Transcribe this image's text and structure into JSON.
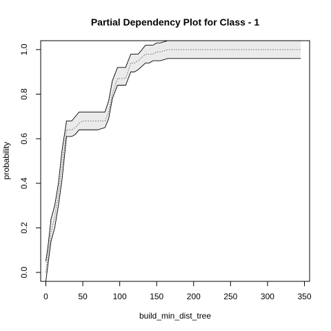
{
  "chart_data": {
    "type": "line",
    "title": "Partial Dependency Plot for Class - 1",
    "xlabel": "build_min_dist_tree",
    "ylabel": "probability",
    "xlim": [
      -7,
      357
    ],
    "ylim": [
      -0.04,
      1.04
    ],
    "x_ticks": [
      0,
      50,
      100,
      150,
      200,
      250,
      300,
      350
    ],
    "y_ticks": [
      0.0,
      0.2,
      0.4,
      0.6,
      0.8,
      1.0
    ],
    "grid": false,
    "band_fill_color": "#ebebeb",
    "line_color": "#000000",
    "series": [
      {
        "name": "upper",
        "x": [
          0,
          3,
          7,
          12,
          17,
          22,
          28,
          35,
          40,
          45,
          50,
          70,
          80,
          85,
          90,
          97,
          108,
          115,
          120,
          125,
          135,
          140,
          145,
          150,
          155,
          165,
          170,
          345
        ],
        "y": [
          0.05,
          0.12,
          0.24,
          0.3,
          0.4,
          0.55,
          0.68,
          0.68,
          0.7,
          0.72,
          0.72,
          0.72,
          0.72,
          0.77,
          0.86,
          0.92,
          0.92,
          0.98,
          0.98,
          0.98,
          1.02,
          1.02,
          1.02,
          1.03,
          1.03,
          1.04,
          1.04,
          1.04
        ]
      },
      {
        "name": "mean",
        "x": [
          0,
          3,
          7,
          12,
          17,
          22,
          28,
          35,
          40,
          45,
          50,
          70,
          80,
          85,
          90,
          97,
          108,
          115,
          120,
          125,
          135,
          140,
          145,
          150,
          155,
          165,
          170,
          345
        ],
        "y": [
          0.0,
          0.08,
          0.18,
          0.25,
          0.35,
          0.48,
          0.64,
          0.64,
          0.65,
          0.67,
          0.68,
          0.68,
          0.68,
          0.72,
          0.8,
          0.87,
          0.87,
          0.94,
          0.94,
          0.95,
          0.98,
          0.98,
          0.98,
          0.99,
          0.99,
          1.0,
          1.0,
          1.0
        ]
      },
      {
        "name": "lower",
        "x": [
          0,
          3,
          7,
          12,
          17,
          22,
          28,
          35,
          40,
          45,
          50,
          70,
          80,
          85,
          90,
          97,
          108,
          115,
          120,
          125,
          135,
          140,
          145,
          150,
          155,
          165,
          170,
          345
        ],
        "y": [
          -0.04,
          0.04,
          0.14,
          0.2,
          0.3,
          0.42,
          0.61,
          0.61,
          0.62,
          0.64,
          0.64,
          0.64,
          0.65,
          0.69,
          0.78,
          0.84,
          0.84,
          0.9,
          0.9,
          0.91,
          0.94,
          0.94,
          0.95,
          0.95,
          0.95,
          0.96,
          0.96,
          0.96
        ]
      }
    ]
  }
}
